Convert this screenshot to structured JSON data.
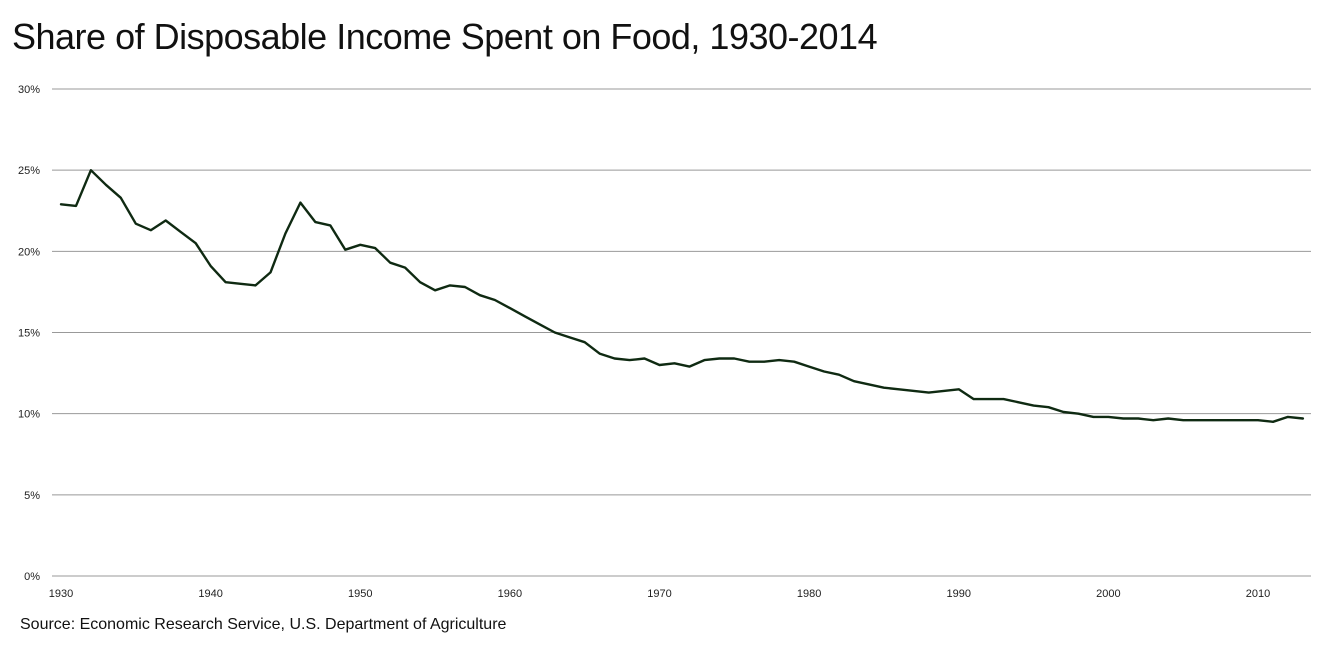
{
  "chart_data": {
    "type": "line",
    "title": "Share of Disposable Income Spent on Food, 1930-2014",
    "source": "Source: Economic Research Service, U.S. Department of Agriculture",
    "xlabel": "",
    "ylabel": "",
    "xlim": [
      1930,
      2013
    ],
    "ylim": [
      0,
      30
    ],
    "x_ticks": [
      1930,
      1940,
      1950,
      1960,
      1970,
      1980,
      1990,
      2000,
      2010
    ],
    "y_ticks": [
      0,
      5,
      10,
      15,
      20,
      25,
      30
    ],
    "y_tick_labels": [
      "0%",
      "5%",
      "10%",
      "15%",
      "20%",
      "25%",
      "30%"
    ],
    "grid": "horizontal",
    "legend": "none",
    "line_color": "#0f2a12",
    "grid_color": "#999999",
    "series": [
      {
        "x": [
          1930,
          1931,
          1932,
          1933,
          1934,
          1935,
          1936,
          1937,
          1938,
          1939,
          1940,
          1941,
          1942,
          1943,
          1944,
          1945,
          1946,
          1947,
          1948,
          1949,
          1950,
          1951,
          1952,
          1953,
          1954,
          1955,
          1956,
          1957,
          1958,
          1959,
          1960,
          1961,
          1962,
          1963,
          1964,
          1965,
          1966,
          1967,
          1968,
          1969,
          1970,
          1971,
          1972,
          1973,
          1974,
          1975,
          1976,
          1977,
          1978,
          1979,
          1980,
          1981,
          1982,
          1983,
          1984,
          1985,
          1986,
          1987,
          1988,
          1989,
          1990,
          1991,
          1992,
          1993,
          1994,
          1995,
          1996,
          1997,
          1998,
          1999,
          2000,
          2001,
          2002,
          2003,
          2004,
          2005,
          2006,
          2007,
          2008,
          2009,
          2010,
          2011,
          2012,
          2013
        ],
        "values": [
          22.9,
          22.8,
          25.0,
          24.1,
          23.3,
          21.7,
          21.3,
          21.9,
          21.2,
          20.5,
          19.1,
          18.1,
          18.0,
          17.9,
          18.7,
          21.1,
          23.0,
          21.8,
          21.6,
          20.1,
          20.4,
          20.2,
          19.3,
          19.0,
          18.1,
          17.6,
          17.9,
          17.8,
          17.3,
          17.0,
          16.5,
          16.0,
          15.5,
          15.0,
          14.7,
          14.4,
          13.7,
          13.4,
          13.3,
          13.4,
          13.0,
          13.1,
          12.9,
          13.3,
          13.4,
          13.4,
          13.2,
          13.2,
          13.3,
          13.2,
          12.9,
          12.6,
          12.4,
          12.0,
          11.8,
          11.6,
          11.5,
          11.4,
          11.3,
          11.4,
          11.5,
          10.9,
          10.9,
          10.9,
          10.7,
          10.5,
          10.4,
          10.1,
          10.0,
          9.8,
          9.8,
          9.7,
          9.7,
          9.6,
          9.7,
          9.6,
          9.6,
          9.6,
          9.6,
          9.6,
          9.6,
          9.5,
          9.8,
          9.7
        ]
      }
    ]
  }
}
